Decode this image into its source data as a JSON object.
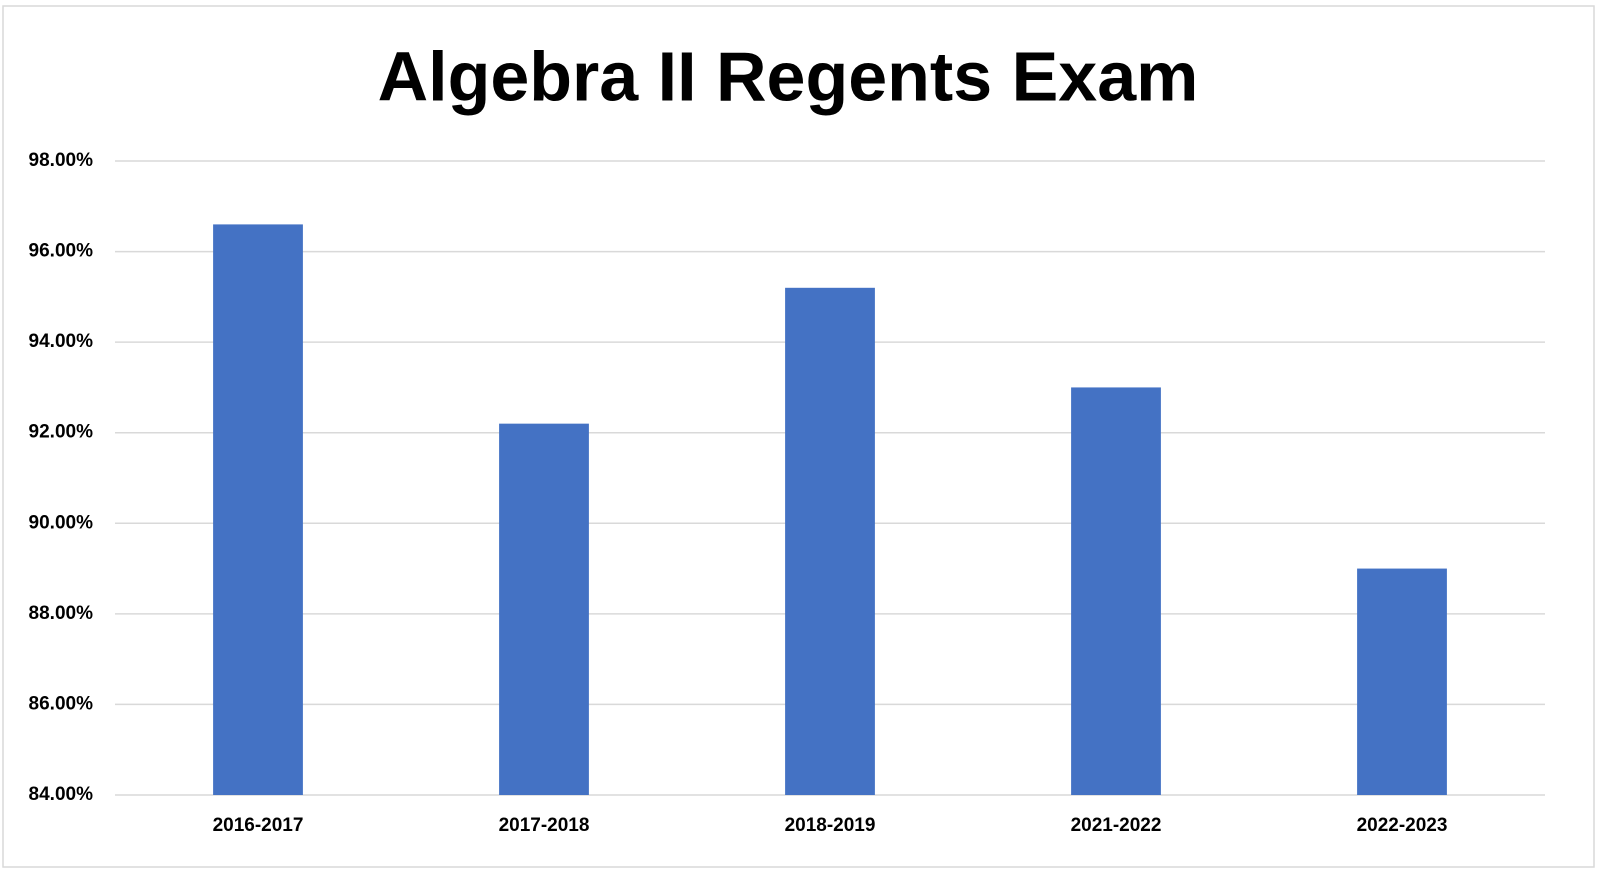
{
  "chart_data": {
    "type": "bar",
    "title": "Algebra II Regents Exam",
    "categories": [
      "2016-2017",
      "2017-2018",
      "2018-2019",
      "2021-2022",
      "2022-2023"
    ],
    "values": [
      96.6,
      92.2,
      95.2,
      93.0,
      89.0
    ],
    "color": "#4472c4",
    "ylim": [
      84,
      98
    ],
    "yticks": [
      {
        "value": 84,
        "label": "84.00%"
      },
      {
        "value": 86,
        "label": "86.00%"
      },
      {
        "value": 88,
        "label": "88.00%"
      },
      {
        "value": 90,
        "label": "90.00%"
      },
      {
        "value": 92,
        "label": "92.00%"
      },
      {
        "value": 94,
        "label": "94.00%"
      },
      {
        "value": 96,
        "label": "96.00%"
      },
      {
        "value": 98,
        "label": "98.00%"
      }
    ],
    "grid": true
  }
}
